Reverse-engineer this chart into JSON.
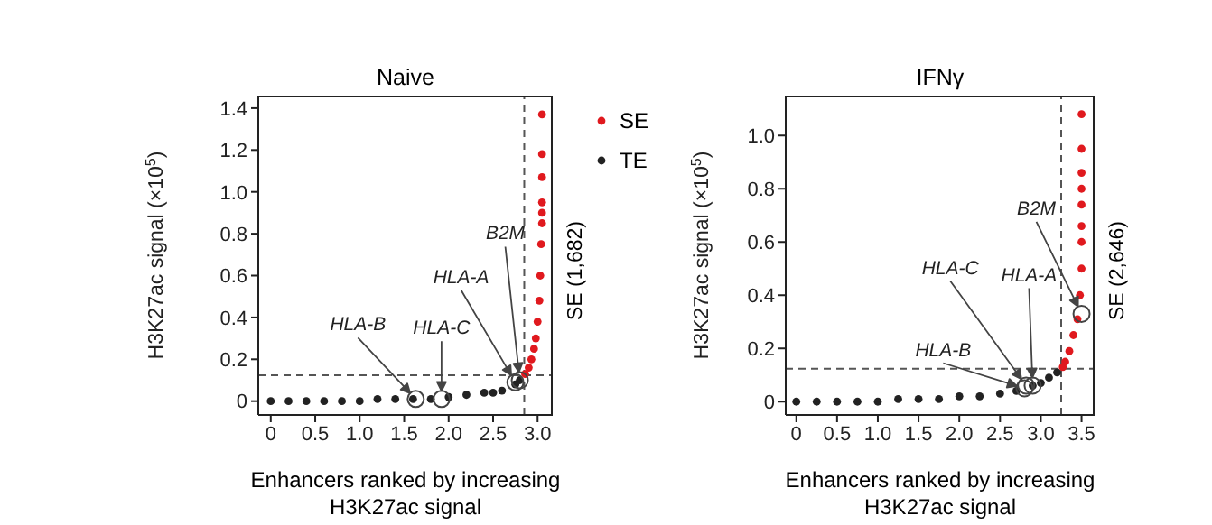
{
  "chart_data": [
    {
      "type": "scatter",
      "title": "Naive",
      "xlabel": "Enhancers ranked by increasing H3K27ac signal",
      "ylabel": "H3K27ac signal (×10$^{5}$)",
      "xlim": [
        -0.14,
        3.17
      ],
      "xticks": [
        0,
        0.5,
        {
          "value": 1,
          "label": "1.0"
        },
        1.5,
        {
          "value": 2,
          "label": "2.0"
        },
        2.5,
        {
          "value": 3,
          "label": "3.0"
        }
      ],
      "ylim": [
        -0.066,
        1.46
      ],
      "yticks": [
        0,
        0.2,
        0.4,
        0.6,
        0.8,
        {
          "value": 1,
          "label": "1.0"
        },
        1.2,
        1.4
      ],
      "grid": false,
      "legend": "right",
      "marker": "circle",
      "series": [
        {
          "name": "TE",
          "color": "#222222",
          "x": [
            0,
            0.2,
            0.4,
            0.6,
            0.8,
            1.0,
            1.2,
            1.4,
            1.6,
            1.8,
            2.0,
            2.2,
            2.4,
            2.5,
            2.6,
            2.75,
            2.8
          ],
          "values": [
            0,
            0,
            0,
            0,
            0,
            0,
            0.01,
            0.01,
            0.01,
            0.01,
            0.02,
            0.03,
            0.04,
            0.04,
            0.05,
            0.08,
            0.1
          ]
        },
        {
          "name": "SE",
          "color": "#e0191e",
          "x": [
            2.86,
            2.9,
            2.93,
            2.96,
            2.98,
            3.0,
            3.02,
            3.03,
            3.04,
            3.05,
            3.05,
            3.05,
            3.05,
            3.05,
            3.05
          ],
          "values": [
            0.13,
            0.16,
            0.2,
            0.25,
            0.3,
            0.38,
            0.48,
            0.6,
            0.75,
            0.85,
            0.9,
            0.95,
            1.07,
            1.18,
            1.37
          ]
        }
      ],
      "ref_lines": [
        {
          "axis": "x",
          "value": 2.85,
          "line_style": "dashed"
        },
        {
          "axis": "y",
          "value": 0.124,
          "line_style": "dashed"
        }
      ],
      "annotations": [
        {
          "text": "HLA-B",
          "x": 1.63,
          "y": 0.01
        },
        {
          "text": "HLA-C",
          "x": 1.92,
          "y": 0.01
        },
        {
          "text": "HLA-A",
          "x": 2.75,
          "y": 0.09
        },
        {
          "text": "B2M",
          "x": 2.8,
          "y": 0.1
        },
        "SE (1,682)"
      ]
    },
    {
      "type": "scatter",
      "title": "IFNγ",
      "xlabel": "Enhancers ranked by increasing H3K27ac signal",
      "ylabel": "H3K27ac signal (×10$^{5}$)",
      "xlim": [
        -0.13,
        3.66
      ],
      "xticks": [
        0,
        0.5,
        {
          "value": 1,
          "label": "1.0"
        },
        1.5,
        {
          "value": 2,
          "label": "2.0"
        },
        2.5,
        {
          "value": 3,
          "label": "3.0"
        },
        3.5
      ],
      "ylim": [
        -0.05,
        1.15
      ],
      "yticks": [
        0,
        0.2,
        0.4,
        0.6,
        0.8,
        {
          "value": 1,
          "label": "1.0"
        }
      ],
      "grid": false,
      "legend": false,
      "marker": "circle",
      "series": [
        {
          "color": "#222222",
          "x": [
            0,
            0.25,
            0.5,
            0.75,
            1.0,
            1.25,
            1.5,
            1.75,
            2.0,
            2.25,
            2.5,
            2.7,
            2.9,
            3.0,
            3.1,
            3.2
          ],
          "values": [
            0,
            0,
            0,
            0,
            0,
            0.01,
            0.01,
            0.01,
            0.02,
            0.02,
            0.03,
            0.04,
            0.06,
            0.07,
            0.09,
            0.11
          ]
        },
        {
          "color": "#e0191e",
          "x": [
            3.27,
            3.3,
            3.35,
            3.4,
            3.45,
            3.48,
            3.5,
            3.5,
            3.5,
            3.5,
            3.5,
            3.5,
            3.5,
            3.5
          ],
          "values": [
            0.13,
            0.15,
            0.19,
            0.25,
            0.31,
            0.4,
            0.5,
            0.6,
            0.66,
            0.74,
            0.8,
            0.86,
            0.95,
            1.08
          ]
        }
      ],
      "ref_lines": [
        {
          "axis": "x",
          "value": 3.25,
          "line_style": "dashed"
        },
        {
          "axis": "y",
          "value": 0.124,
          "line_style": "dashed"
        }
      ],
      "annotations": [
        {
          "text": "HLA-B",
          "x": 2.8,
          "y": 0.05
        },
        {
          "text": "HLA-C",
          "x": 2.82,
          "y": 0.06
        },
        {
          "text": "HLA-A",
          "x": 2.9,
          "y": 0.06
        },
        {
          "text": "B2M",
          "x": 3.5,
          "y": 0.33
        },
        "SE (2,646)"
      ]
    }
  ]
}
